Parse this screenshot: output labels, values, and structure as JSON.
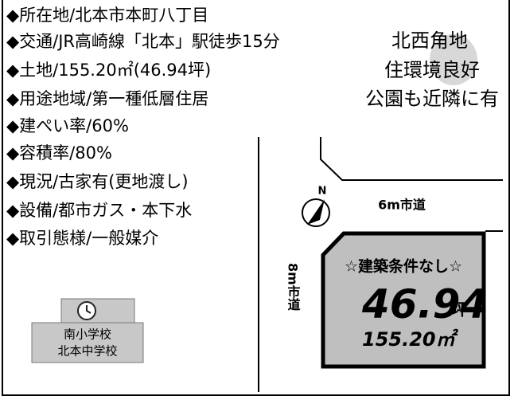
{
  "details": [
    "◆所在地/北本市本町八丁目",
    "◆交通/JR高崎線「北本」駅徒歩15分",
    "◆土地/155.20㎡(46.94坪)",
    "◆用途地域/第一種低層住居",
    "◆建ぺい率/60%",
    "◆容積率/80%",
    "◆現況/古家有(更地渡し)",
    "◆設備/都市ガス・本下水",
    "◆取引態様/一般媒介"
  ],
  "highlights": [
    "北西角地",
    "住環境良好",
    "公園も近隣に有"
  ],
  "map": {
    "north": "N",
    "road_north": "6m市道",
    "road_west": "8m市道",
    "lot_note": "☆建築条件なし☆",
    "lot_tsubo": "46.94",
    "tsubo_unit": "坪",
    "lot_area": "155.20㎡"
  },
  "schools": [
    "南小学校",
    "北本中学校"
  ]
}
